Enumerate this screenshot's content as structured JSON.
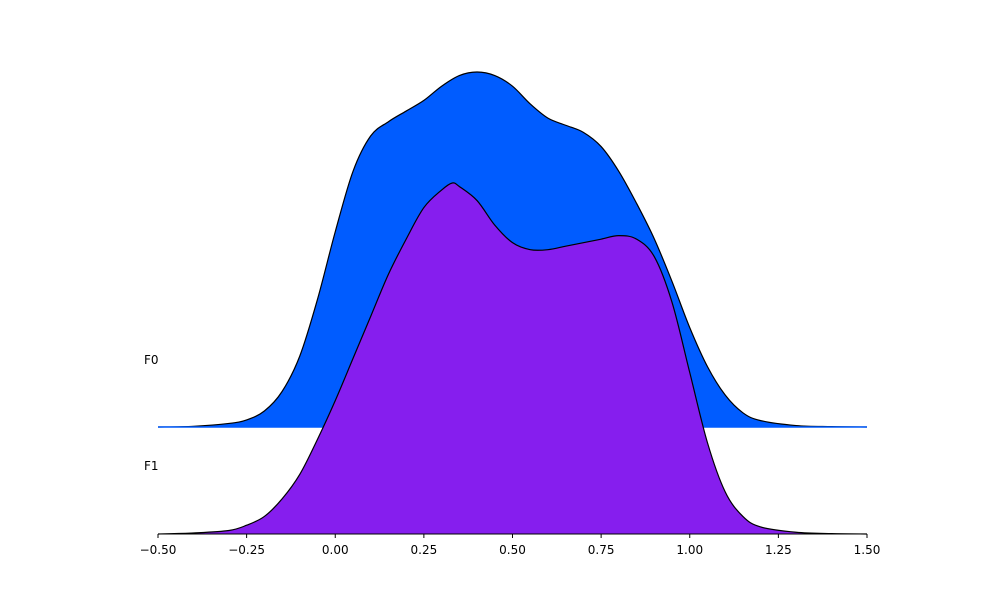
{
  "chart_data": {
    "type": "area",
    "subtype": "ridgeline",
    "title": "",
    "xlabel": "",
    "ylabel": "",
    "xlim": [
      -0.5,
      1.5
    ],
    "x_ticks": [
      -0.5,
      -0.25,
      0.0,
      0.25,
      0.5,
      0.75,
      1.0,
      1.25,
      1.5
    ],
    "x_tick_labels": [
      "−0.50",
      "−0.25",
      "0.00",
      "0.25",
      "0.50",
      "0.75",
      "1.00",
      "1.25",
      "1.50"
    ],
    "grid": false,
    "legend": "none",
    "row_labels": [
      "F0",
      "F1"
    ],
    "series": [
      {
        "name": "F0",
        "color": "#005cff",
        "x": [
          -0.5,
          -0.4,
          -0.3,
          -0.25,
          -0.2,
          -0.15,
          -0.1,
          -0.05,
          0.0,
          0.05,
          0.1,
          0.15,
          0.2,
          0.25,
          0.3,
          0.35,
          0.4,
          0.45,
          0.5,
          0.55,
          0.6,
          0.65,
          0.7,
          0.75,
          0.8,
          0.85,
          0.9,
          0.95,
          1.0,
          1.05,
          1.1,
          1.15,
          1.2,
          1.3,
          1.4,
          1.5
        ],
        "values": [
          0.0,
          0.002,
          0.01,
          0.02,
          0.045,
          0.1,
          0.2,
          0.36,
          0.55,
          0.72,
          0.82,
          0.86,
          0.89,
          0.92,
          0.96,
          0.99,
          1.0,
          0.99,
          0.96,
          0.91,
          0.87,
          0.85,
          0.83,
          0.79,
          0.72,
          0.63,
          0.53,
          0.41,
          0.28,
          0.17,
          0.09,
          0.04,
          0.018,
          0.004,
          0.001,
          0.0
        ]
      },
      {
        "name": "F1",
        "color": "#861eee",
        "x": [
          -0.5,
          -0.4,
          -0.3,
          -0.25,
          -0.2,
          -0.15,
          -0.1,
          -0.05,
          0.0,
          0.05,
          0.1,
          0.15,
          0.2,
          0.25,
          0.3,
          0.33,
          0.35,
          0.4,
          0.45,
          0.5,
          0.55,
          0.6,
          0.65,
          0.7,
          0.75,
          0.8,
          0.85,
          0.9,
          0.95,
          1.0,
          1.05,
          1.1,
          1.15,
          1.2,
          1.3,
          1.4,
          1.5
        ],
        "values": [
          0.0,
          0.003,
          0.01,
          0.025,
          0.05,
          0.1,
          0.17,
          0.27,
          0.38,
          0.5,
          0.62,
          0.74,
          0.84,
          0.93,
          0.98,
          1.0,
          0.99,
          0.95,
          0.88,
          0.83,
          0.81,
          0.81,
          0.82,
          0.83,
          0.84,
          0.85,
          0.84,
          0.79,
          0.66,
          0.46,
          0.26,
          0.12,
          0.05,
          0.02,
          0.005,
          0.001,
          0.0
        ]
      }
    ]
  }
}
